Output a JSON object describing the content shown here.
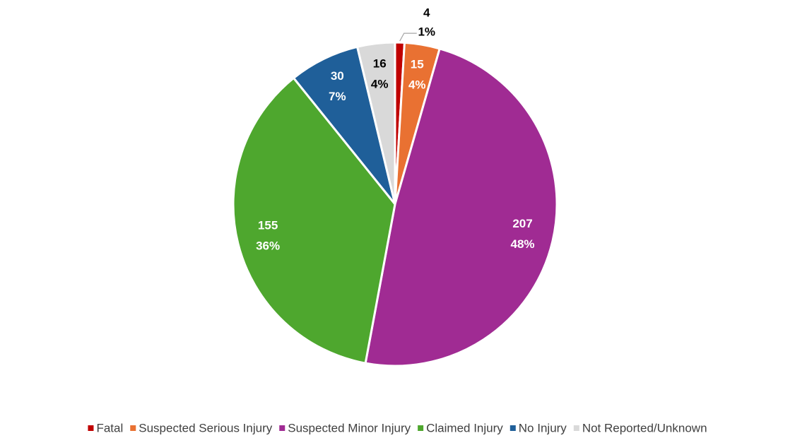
{
  "chart_data": {
    "type": "pie",
    "categories": [
      "Fatal",
      "Suspected Serious Injury",
      "Suspected Minor Injury",
      "Claimed Injury",
      "No Injury",
      "Not Reported/Unknown"
    ],
    "values": [
      4,
      15,
      207,
      155,
      30,
      16
    ],
    "percent_labels": [
      "1%",
      "4%",
      "48%",
      "36%",
      "7%",
      "4%"
    ],
    "colors": [
      "#c00000",
      "#e97132",
      "#a02b93",
      "#4ea72e",
      "#1f5f99",
      "#d9d9d9"
    ],
    "legend": "bottom"
  }
}
